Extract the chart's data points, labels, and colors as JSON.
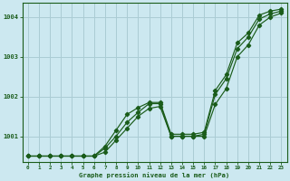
{
  "title": "Graphe pression niveau de la mer (hPa)",
  "bg_color": "#cce8f0",
  "grid_color": "#aaccd4",
  "line_color": "#1a5c1a",
  "xlim": [
    -0.5,
    23.5
  ],
  "ylim": [
    1000.35,
    1004.35
  ],
  "yticks": [
    1001,
    1002,
    1003,
    1004
  ],
  "xticks": [
    0,
    1,
    2,
    3,
    4,
    5,
    6,
    7,
    8,
    9,
    10,
    11,
    12,
    13,
    14,
    15,
    16,
    17,
    18,
    19,
    20,
    21,
    22,
    23
  ],
  "series1": {
    "x": [
      0,
      1,
      2,
      3,
      4,
      5,
      6,
      7,
      8,
      9,
      10,
      11,
      12,
      13,
      14,
      15,
      16,
      17,
      18,
      19,
      20,
      21,
      22,
      23
    ],
    "y": [
      1000.5,
      1000.5,
      1000.5,
      1000.5,
      1000.5,
      1000.5,
      1000.5,
      1000.6,
      1000.9,
      1001.2,
      1001.5,
      1001.7,
      1001.75,
      1001.0,
      1001.0,
      1001.0,
      1001.0,
      1001.8,
      1002.2,
      1003.0,
      1003.3,
      1003.8,
      1004.0,
      1004.1
    ]
  },
  "series2": {
    "x": [
      0,
      1,
      2,
      3,
      4,
      5,
      6,
      7,
      8,
      9,
      10,
      11,
      12,
      13,
      14,
      15,
      16,
      17,
      18,
      19,
      20,
      21,
      22,
      23
    ],
    "y": [
      1000.5,
      1000.5,
      1000.5,
      1000.5,
      1000.5,
      1000.5,
      1000.5,
      1000.7,
      1001.0,
      1001.35,
      1001.6,
      1001.82,
      1001.82,
      1001.0,
      1001.0,
      1001.0,
      1001.05,
      1002.05,
      1002.45,
      1003.2,
      1003.5,
      1003.95,
      1004.08,
      1004.15
    ]
  },
  "series3": {
    "x": [
      0,
      1,
      2,
      3,
      4,
      5,
      6,
      7,
      8,
      9,
      10,
      11,
      12,
      13,
      14,
      15,
      16,
      17,
      18,
      19,
      20,
      21,
      22,
      23
    ],
    "y": [
      1000.5,
      1000.5,
      1000.5,
      1000.5,
      1000.5,
      1000.5,
      1000.5,
      1000.75,
      1001.15,
      1001.55,
      1001.72,
      1001.85,
      1001.85,
      1001.05,
      1001.05,
      1001.05,
      1001.1,
      1002.15,
      1002.55,
      1003.35,
      1003.6,
      1004.05,
      1004.15,
      1004.2
    ]
  }
}
